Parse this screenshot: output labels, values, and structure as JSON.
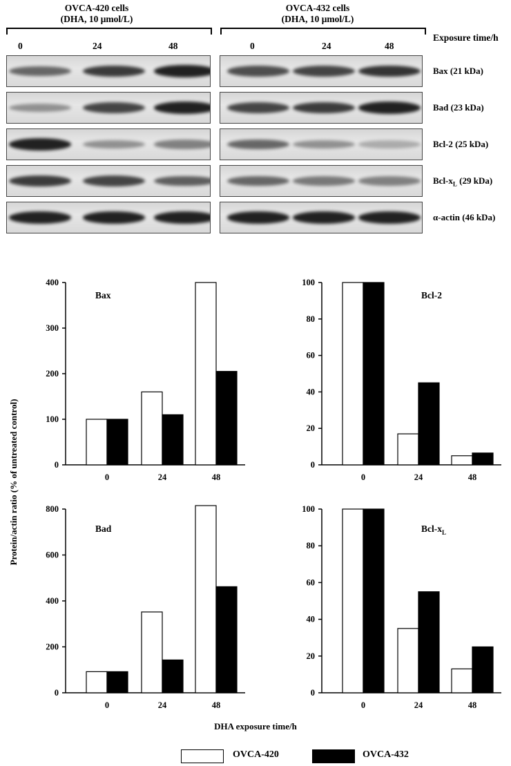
{
  "blot": {
    "group1_title": "OVCA-420 cells",
    "group1_sub": "(DHA, 10 μmol/L)",
    "group2_title": "OVCA-432 cells",
    "group2_sub": "(DHA, 10 μmol/L)",
    "exposure_label": "Exposure time/h",
    "lanes": [
      "0",
      "24",
      "48"
    ],
    "rows": [
      {
        "label": "Bax (21 kDa)",
        "g1": [
          0.55,
          0.8,
          0.95
        ],
        "g2": [
          0.7,
          0.75,
          0.85
        ]
      },
      {
        "label": "Bad (23 kDa)",
        "g1": [
          0.3,
          0.75,
          0.95
        ],
        "g2": [
          0.75,
          0.8,
          0.95
        ]
      },
      {
        "label": "Bcl-2 (25 kDa)",
        "g1": [
          0.95,
          0.3,
          0.4
        ],
        "g2": [
          0.55,
          0.3,
          0.15
        ]
      },
      {
        "label_main": "Bcl-x",
        "label_sub": "L",
        "label_rest": " (29 kDa)",
        "g1": [
          0.8,
          0.75,
          0.6
        ],
        "g2": [
          0.55,
          0.45,
          0.4
        ]
      },
      {
        "label": "α-actin (46 kDa)",
        "g1": [
          0.95,
          0.95,
          0.95
        ],
        "g2": [
          0.95,
          0.95,
          0.95
        ]
      }
    ]
  },
  "chart_data": [
    {
      "type": "bar",
      "title": "Bax",
      "categories": [
        "0",
        "24",
        "48"
      ],
      "ylim": [
        0,
        400
      ],
      "yticks": [
        0,
        100,
        200,
        300,
        400
      ],
      "series": [
        {
          "name": "OVCA-420",
          "values": [
            100,
            160,
            400
          ]
        },
        {
          "name": "OVCA-432",
          "values": [
            100,
            110,
            205
          ]
        }
      ]
    },
    {
      "type": "bar",
      "title": "Bcl-2",
      "categories": [
        "0",
        "24",
        "48"
      ],
      "ylim": [
        0,
        100
      ],
      "yticks": [
        0,
        20,
        40,
        60,
        80,
        100
      ],
      "series": [
        {
          "name": "OVCA-420",
          "values": [
            100,
            17,
            5
          ]
        },
        {
          "name": "OVCA-432",
          "values": [
            100,
            45,
            6.5
          ]
        }
      ]
    },
    {
      "type": "bar",
      "title": "Bad",
      "categories": [
        "0",
        "24",
        "48"
      ],
      "ylim": [
        0,
        800
      ],
      "yticks": [
        0,
        200,
        400,
        600,
        800
      ],
      "series": [
        {
          "name": "OVCA-420",
          "values": [
            92,
            352,
            815
          ]
        },
        {
          "name": "OVCA-432",
          "values": [
            92,
            143,
            462
          ]
        }
      ]
    },
    {
      "type": "bar",
      "title": "Bcl-x",
      "title_sub": "L",
      "categories": [
        "0",
        "24",
        "48"
      ],
      "ylim": [
        0,
        100
      ],
      "yticks": [
        0,
        20,
        40,
        60,
        80,
        100
      ],
      "series": [
        {
          "name": "OVCA-420",
          "values": [
            100,
            35,
            13
          ]
        },
        {
          "name": "OVCA-432",
          "values": [
            100,
            55,
            25
          ]
        }
      ]
    }
  ],
  "axes": {
    "ylabel": "Protein/actin ratio (% of untreated control)",
    "xlabel": "DHA exposure time/h"
  },
  "legend": {
    "item1": "OVCA-420",
    "item2": "OVCA-432"
  },
  "colors": {
    "series1": "#ffffff",
    "series2": "#000000"
  }
}
